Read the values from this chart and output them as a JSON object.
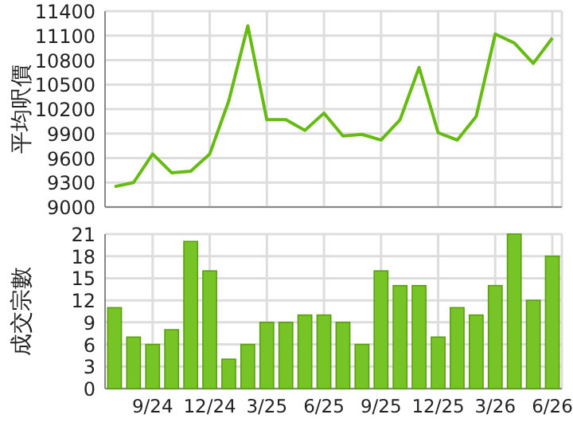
{
  "chart_data": [
    {
      "type": "line",
      "ylabel": "平均呎價",
      "categories": [
        null,
        null,
        null,
        null,
        null,
        null,
        null,
        null,
        null,
        null,
        null,
        null,
        null,
        null,
        null,
        null,
        null,
        null,
        null,
        null,
        null,
        null,
        null,
        null
      ],
      "tick_labels": "y",
      "grid": true,
      "marker": "none",
      "series": [
        {
          "color": "#66bb11",
          "values": [
            9250,
            9300,
            9650,
            9420,
            9440,
            9650,
            10300,
            11220,
            10070,
            10070,
            9940,
            10150,
            9870,
            9890,
            9820,
            10070,
            10710,
            9910,
            9820,
            10110,
            11120,
            11010,
            10760,
            11070
          ]
        }
      ],
      "ylim": [
        9000,
        11400
      ],
      "yticks": [
        9000,
        9300,
        9600,
        9900,
        10200,
        10500,
        10800,
        11100,
        11400
      ]
    },
    {
      "type": "bar",
      "ylabel": "成交宗數",
      "categories": [
        null,
        null,
        "9/24",
        null,
        null,
        "12/24",
        null,
        null,
        "3/25",
        null,
        null,
        "6/25",
        null,
        null,
        "9/25",
        null,
        null,
        "12/25",
        null,
        null,
        "3/26",
        null,
        null,
        "6/26"
      ],
      "grid": true,
      "series": [
        {
          "color": "#77c427",
          "values": [
            11,
            7,
            6,
            8,
            20,
            16,
            4,
            6,
            9,
            9,
            10,
            10,
            9,
            6,
            16,
            14,
            14,
            7,
            11,
            10,
            14,
            21,
            12,
            18
          ]
        }
      ],
      "ylim": [
        0,
        21
      ],
      "yticks": [
        0,
        3,
        6,
        9,
        12,
        15,
        18,
        21
      ]
    }
  ]
}
